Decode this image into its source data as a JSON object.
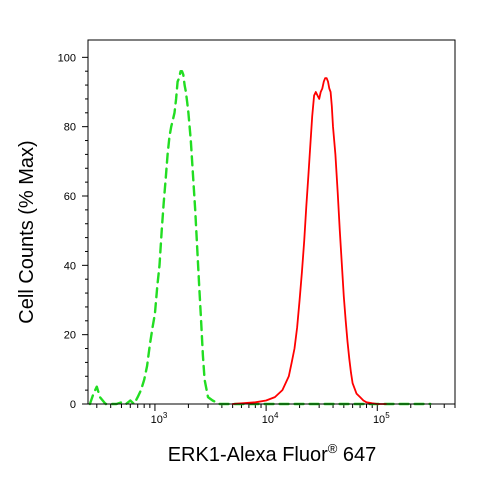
{
  "chart_data": {
    "type": "line",
    "xlabel": "ERK1-Alexa Fluor",
    "xlabel_superscript": "®",
    "xlabel_suffix": " 647",
    "ylabel": "Cell Counts (% Max)",
    "x_scale": "log",
    "xlim": [
      250,
      500000
    ],
    "ylim": [
      0,
      105
    ],
    "x_ticks": [
      {
        "base": "10",
        "exp": "3",
        "value": 1000
      },
      {
        "base": "10",
        "exp": "4",
        "value": 10000
      },
      {
        "base": "10",
        "exp": "5",
        "value": 100000
      }
    ],
    "y_ticks": [
      0,
      20,
      40,
      60,
      80,
      100
    ],
    "grid": false,
    "legend": "none",
    "series": [
      {
        "color": "#22dd22",
        "line_style": "dashed",
        "x": [
          260,
          280,
          300,
          320,
          360,
          400,
          450,
          500,
          550,
          600,
          650,
          700,
          750,
          800,
          850,
          900,
          950,
          1000,
          1050,
          1100,
          1150,
          1200,
          1250,
          1300,
          1350,
          1400,
          1450,
          1500,
          1550,
          1600,
          1650,
          1700,
          1750,
          1800,
          1850,
          1900,
          1950,
          2000,
          2100,
          2200,
          2300,
          2400,
          2500,
          2600,
          2700,
          2800,
          3000,
          3300,
          3800,
          5000,
          10000,
          30000,
          100000,
          300000
        ],
        "y": [
          0,
          3,
          5,
          2,
          0,
          0,
          0,
          0.5,
          0,
          1,
          0,
          2,
          4,
          7,
          11,
          17,
          22,
          26,
          34,
          40,
          50,
          58,
          65,
          72,
          77,
          80,
          82,
          84,
          88,
          93,
          94,
          96,
          96,
          95,
          92,
          90,
          87,
          84,
          76,
          66,
          56,
          45,
          34,
          24,
          14,
          7,
          2,
          1,
          0,
          0,
          0,
          0,
          0,
          0
        ]
      },
      {
        "color": "#ff0000",
        "line_style": "solid",
        "x": [
          5000,
          8000,
          10000,
          12000,
          14000,
          16000,
          17000,
          18000,
          19000,
          20000,
          21000,
          22000,
          23000,
          24000,
          25000,
          26000,
          27000,
          28000,
          29000,
          30000,
          31000,
          32000,
          33000,
          34000,
          35000,
          36000,
          37000,
          38000,
          39000,
          40000,
          42000,
          44000,
          46000,
          48000,
          50000,
          52000,
          54000,
          56000,
          58000,
          60000,
          65000,
          70000,
          75000,
          80000,
          90000,
          100000,
          120000
        ],
        "y": [
          0,
          0.5,
          1,
          2,
          4,
          8,
          12,
          16,
          22,
          30,
          38,
          47,
          57,
          66,
          75,
          83,
          89,
          90,
          89,
          88,
          90,
          91,
          93,
          94,
          94,
          93,
          91,
          90,
          86,
          80,
          72,
          61,
          50,
          40,
          31,
          24,
          18,
          13,
          9,
          6,
          3,
          2,
          1,
          0.5,
          0.2,
          0,
          0
        ]
      }
    ]
  }
}
